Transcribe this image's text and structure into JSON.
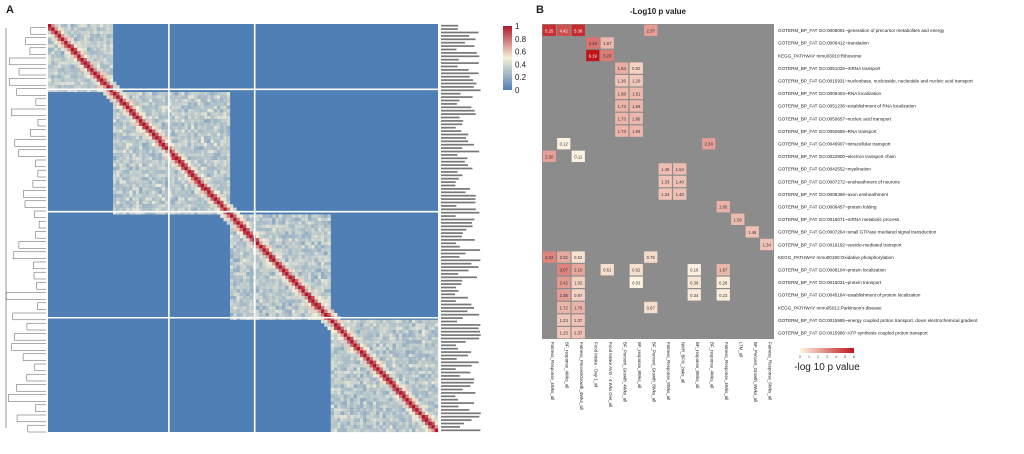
{
  "panel_a": {
    "letter": "A",
    "colorbar": {
      "ticks": [
        "1",
        "0.8",
        "0.6",
        "0.4",
        "0.2",
        "0"
      ]
    }
  },
  "panel_b": {
    "letter": "B",
    "title": "-Log10 p value",
    "legend_title": "-log 10 p value",
    "legend_ticks": [
      "0",
      "1",
      "2",
      "3",
      "4",
      "5",
      "6"
    ]
  },
  "chart_data": [
    {
      "panel": "A",
      "type": "heatmap",
      "description_scale": [
        0,
        1
      ],
      "colors": {
        "low": "#4f7fb5",
        "mid": "#f5f0d8",
        "high": "#b2182b",
        "divider": "#ffffff"
      },
      "block_breaks": [
        0.16,
        0.46,
        0.72
      ],
      "column_breaks": [
        0.31,
        0.53
      ]
    },
    {
      "panel": "B",
      "type": "heatmap",
      "value_range": [
        0,
        6
      ],
      "colors": {
        "na": "#8c8c8c",
        "low": "#fdf6e3",
        "high": "#c0141b"
      },
      "rows": [
        "GOTERM_BP_FAT GO:0006091~generation of precursor metabolites and energy",
        "GOTERM_BP_FAT GO:0006412~translation",
        "KEGG_PATHWAY mmu03010:Ribosome",
        "GOTERM_BP_FAT GO:0051028~mRNA transport",
        "GOTERM_BP_FAT GO:0015931~nucleobase, nucleoside, nucleotide and nucleic acid transport",
        "GOTERM_BP_FAT GO:0006403~RNA localization",
        "GOTERM_BP_FAT GO:0051236~establishment of RNA localization",
        "GOTERM_BP_FAT GO:0050657~nucleic acid transport",
        "GOTERM_BP_FAT GO:0050658~RNA transport",
        "GOTERM_BP_FAT GO:0046907~intracellular transport",
        "GOTERM_BP_FAT GO:0022900~electron transport chain",
        "GOTERM_BP_FAT GO:0042552~myelination",
        "GOTERM_BP_FAT GO:0007272~ensheathment of neurons",
        "GOTERM_BP_FAT GO:0008366~axon ensheathment",
        "GOTERM_BP_FAT GO:0006457~protein folding",
        "GOTERM_BP_FAT GO:0016071~mRNA metabolic process",
        "GOTERM_BP_FAT GO:0007264~small GTPase mediated signal transduction",
        "GOTERM_BP_FAT GO:0016192~vesicle-mediated transport",
        "KEGG_PATHWAY mmu00190:Oxidative phosphorylation",
        "GOTERM_BP_FAT GO:0008104~protein localization",
        "GOTERM_BP_FAT GO:0015031~protein transport",
        "GOTERM_BP_FAT GO:0045184~establishment of protein localization",
        "KEGG_PATHWAY mmu05012:Parkinson's disease",
        "GOTERM_BP_FAT GO:0015985~energy coupled proton transport, down electrochemical gradient",
        "GOTERM_BP_FAT GO:0015986~ATP synthesis coupled proton transport"
      ],
      "columns": [
        "Fatness_Response_4Wks_all",
        "BF_response_4Wks_all",
        "Fatness_PercentGrowth_4Wks_all",
        "Food Intake - Day 1_all",
        "Food Intake AVG - 4 Wks Diet_all",
        "BF_Percent_Growth_4Wks_all",
        "BF_response_8Wks_all",
        "BF_Percent_Growth_8Wks_all",
        "Fatness_Response_8Wks_all",
        "NMR_BF%_2wks_all",
        "BF_response_8Wks_all",
        "BF_response_4Wks_all",
        "Fatness_Response_4Wks_all",
        "LTM_all",
        "BF_Percent_Growth_8Wks_all",
        "Fatness_Response_8Wks_all"
      ],
      "cells": [
        {
          "r": 0,
          "c": 0,
          "v": 5.25,
          "label": "5.25"
        },
        {
          "r": 0,
          "c": 1,
          "v": 4.42,
          "label": "4.42"
        },
        {
          "r": 0,
          "c": 2,
          "v": 5.38,
          "label": "5.38"
        },
        {
          "r": 0,
          "c": 7,
          "v": 2.37,
          "label": "2.37"
        },
        {
          "r": 1,
          "c": 3,
          "v": 3.48,
          "label": "3.48"
        },
        {
          "r": 1,
          "c": 4,
          "v": 1.67,
          "label": "1.67"
        },
        {
          "r": 2,
          "c": 3,
          "v": 6.19,
          "label": "6.19"
        },
        {
          "r": 2,
          "c": 4,
          "v": 3.23,
          "label": "3.23"
        },
        {
          "r": 3,
          "c": 5,
          "v": 1.94,
          "label": "1.94"
        },
        {
          "r": 3,
          "c": 6,
          "v": 0.92,
          "label": "0.92"
        },
        {
          "r": 4,
          "c": 5,
          "v": 1.36,
          "label": "1.36"
        },
        {
          "r": 4,
          "c": 6,
          "v": 1.2,
          "label": "1.20"
        },
        {
          "r": 5,
          "c": 5,
          "v": 1.68,
          "label": "1.68"
        },
        {
          "r": 5,
          "c": 6,
          "v": 1.61,
          "label": "1.61"
        },
        {
          "r": 6,
          "c": 5,
          "v": 1.73,
          "label": "1.73"
        },
        {
          "r": 6,
          "c": 6,
          "v": 1.66,
          "label": "1.66"
        },
        {
          "r": 7,
          "c": 5,
          "v": 1.73,
          "label": "1.73"
        },
        {
          "r": 7,
          "c": 6,
          "v": 1.66,
          "label": "1.66"
        },
        {
          "r": 8,
          "c": 5,
          "v": 1.73,
          "label": "1.73"
        },
        {
          "r": 8,
          "c": 6,
          "v": 1.66,
          "label": "1.66"
        },
        {
          "r": 9,
          "c": 1,
          "v": 0.12,
          "label": "0.12"
        },
        {
          "r": 9,
          "c": 11,
          "v": 2.34,
          "label": "2.34"
        },
        {
          "r": 10,
          "c": 0,
          "v": 2.3,
          "label": "2.30"
        },
        {
          "r": 10,
          "c": 2,
          "v": 0.11,
          "label": "0.11"
        },
        {
          "r": 11,
          "c": 8,
          "v": 1.46,
          "label": "1.46"
        },
        {
          "r": 11,
          "c": 9,
          "v": 1.54,
          "label": "1.54"
        },
        {
          "r": 12,
          "c": 8,
          "v": 1.33,
          "label": "1.33"
        },
        {
          "r": 12,
          "c": 9,
          "v": 1.4,
          "label": "1.40"
        },
        {
          "r": 13,
          "c": 8,
          "v": 1.33,
          "label": "1.33"
        },
        {
          "r": 13,
          "c": 9,
          "v": 1.4,
          "label": "1.40"
        },
        {
          "r": 14,
          "c": 12,
          "v": 1.8,
          "label": "1.80"
        },
        {
          "r": 15,
          "c": 13,
          "v": 1.58,
          "label": "1.58"
        },
        {
          "r": 16,
          "c": 14,
          "v": 1.46,
          "label": "1.46"
        },
        {
          "r": 17,
          "c": 15,
          "v": 1.34,
          "label": "1.34"
        },
        {
          "r": 18,
          "c": 0,
          "v": 3.02,
          "label": "3.02"
        },
        {
          "r": 18,
          "c": 1,
          "v": 2.02,
          "label": "2.02"
        },
        {
          "r": 18,
          "c": 2,
          "v": 0.52,
          "label": "0.52"
        },
        {
          "r": 18,
          "c": 7,
          "v": 0.75,
          "label": "0.75"
        },
        {
          "r": 19,
          "c": 1,
          "v": 3.07,
          "label": "3.07"
        },
        {
          "r": 19,
          "c": 2,
          "v": 2.1,
          "label": "2.10"
        },
        {
          "r": 19,
          "c": 4,
          "v": 0.61,
          "label": "0.61"
        },
        {
          "r": 19,
          "c": 6,
          "v": 0.62,
          "label": "0.62"
        },
        {
          "r": 19,
          "c": 10,
          "v": 0.16,
          "label": "0.16"
        },
        {
          "r": 19,
          "c": 12,
          "v": 1.67,
          "label": "1.67"
        },
        {
          "r": 20,
          "c": 1,
          "v": 2.42,
          "label": "2.42"
        },
        {
          "r": 20,
          "c": 2,
          "v": 1.02,
          "label": "1.02"
        },
        {
          "r": 20,
          "c": 6,
          "v": 0.03,
          "label": "0.03"
        },
        {
          "r": 20,
          "c": 10,
          "v": 0.39,
          "label": "0.39"
        },
        {
          "r": 20,
          "c": 12,
          "v": 0.28,
          "label": "0.28"
        },
        {
          "r": 21,
          "c": 1,
          "v": 2.38,
          "label": "2.38"
        },
        {
          "r": 21,
          "c": 2,
          "v": 0.97,
          "label": "0.97"
        },
        {
          "r": 21,
          "c": 10,
          "v": 0.34,
          "label": "0.34"
        },
        {
          "r": 21,
          "c": 12,
          "v": 0.23,
          "label": "0.23"
        },
        {
          "r": 22,
          "c": 1,
          "v": 1.72,
          "label": "1.72"
        },
        {
          "r": 22,
          "c": 2,
          "v": 1.76,
          "label": "1.76"
        },
        {
          "r": 22,
          "c": 7,
          "v": 0.67,
          "label": "0.67"
        },
        {
          "r": 23,
          "c": 1,
          "v": 1.23,
          "label": "1.23"
        },
        {
          "r": 23,
          "c": 2,
          "v": 1.37,
          "label": "1.37"
        },
        {
          "r": 24,
          "c": 1,
          "v": 1.23,
          "label": "1.23"
        },
        {
          "r": 24,
          "c": 2,
          "v": 1.37,
          "label": "1.37"
        }
      ]
    }
  ]
}
